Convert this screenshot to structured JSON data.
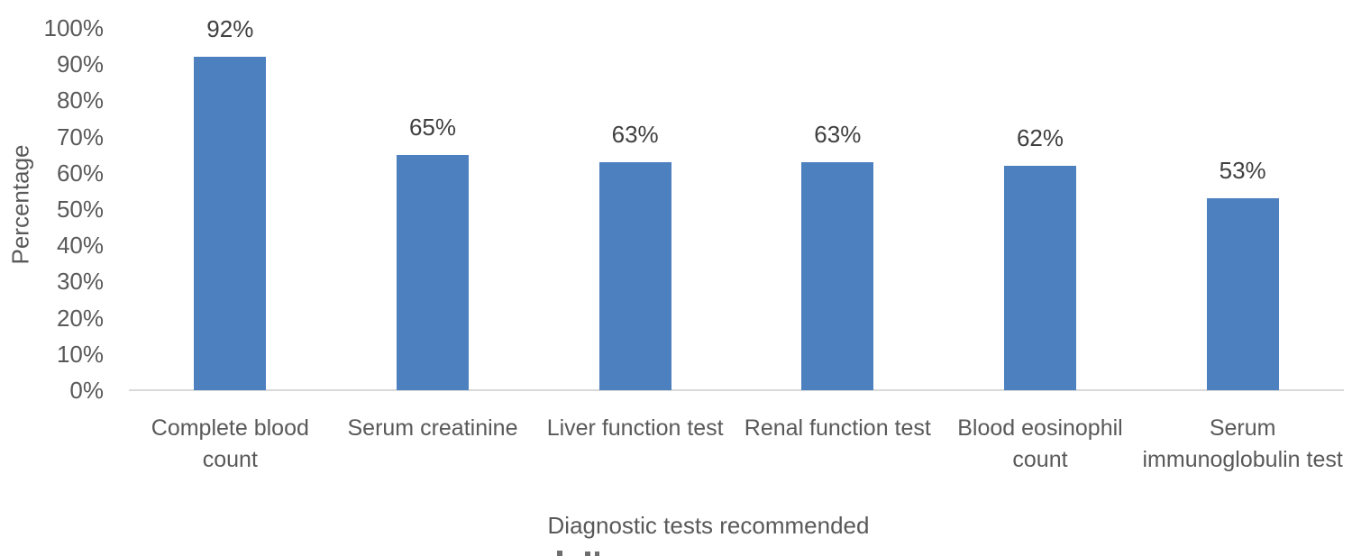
{
  "chart_data": {
    "type": "bar",
    "title": "",
    "categories": [
      "Complete blood count",
      "Serum creatinine",
      "Liver function test",
      "Renal function test",
      "Blood eosinophil count",
      "Serum immunoglobulin test"
    ],
    "values": [
      92,
      65,
      63,
      63,
      62,
      53
    ],
    "value_labels": [
      "92%",
      "65%",
      "63%",
      "63%",
      "62%",
      "53%"
    ],
    "xlabel": "Diagnostic tests recommended",
    "ylabel": "Percentage",
    "ylim": [
      0,
      100
    ],
    "ytick_values": [
      0,
      10,
      20,
      30,
      40,
      50,
      60,
      70,
      80,
      90,
      100
    ],
    "ytick_labels": [
      "0%",
      "10%",
      "20%",
      "30%",
      "40%",
      "50%",
      "60%",
      "70%",
      "80%",
      "90%",
      "100%"
    ],
    "legend_position": "none",
    "grid": "off",
    "bar_color": "#4d80bf",
    "axis_line_color": "#d9d9d9",
    "tick_text_color": "#595959",
    "value_label_color": "#3f3f3f"
  }
}
